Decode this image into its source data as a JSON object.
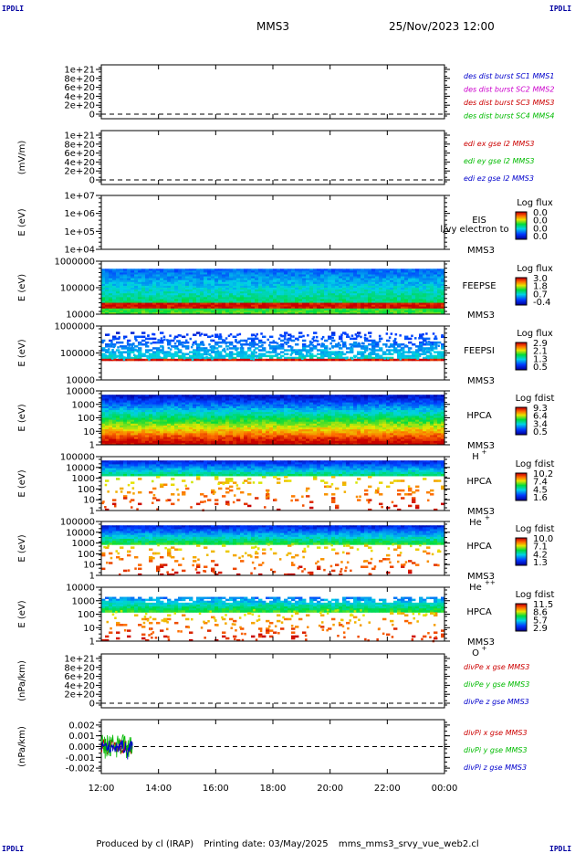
{
  "header": {
    "corner_left_top": "IPDLI",
    "corner_right_top": "IPDLI",
    "corner_left_bottom": "IPDLI",
    "corner_right_bottom": "IPDLI",
    "spacecraft": "MMS3",
    "datetime": "25/Nov/2023 12:00"
  },
  "footer": {
    "produced": "Produced by cl (IRAP)",
    "printed": "Printing date: 03/May/2025",
    "script": "mms_mms3_srvy_vue_web2.cl"
  },
  "colors": {
    "blue": "#0000cc",
    "magenta": "#cc00cc",
    "red": "#cc0000",
    "green": "#00bb00",
    "axis": "#000000"
  },
  "chart_data": [
    {
      "type": "line",
      "ylabel": "",
      "ticks": [
        "1e+21",
        "8e+20",
        "6e+20",
        "4e+20",
        "2e+20",
        "0"
      ],
      "zero_line": "dashed",
      "legend": [
        {
          "label": "des dist burst SC1 MMS1",
          "color": "#0000cc"
        },
        {
          "label": "des dist burst SC2 MMS2",
          "color": "#cc00cc"
        },
        {
          "label": "des dist burst SC3 MMS3",
          "color": "#cc0000"
        },
        {
          "label": "des dist burst SC4 MMS4",
          "color": "#00bb00"
        }
      ]
    },
    {
      "type": "line",
      "ylabel": "(mV/m)",
      "ticks": [
        "1e+21",
        "8e+20",
        "6e+20",
        "4e+20",
        "2e+20",
        "0"
      ],
      "zero_line": "dashed",
      "legend": [
        {
          "label": "edi ex gse l2 MMS3",
          "color": "#cc0000"
        },
        {
          "label": "edi ey gse l2 MMS3",
          "color": "#00bb00"
        },
        {
          "label": "edi ez gse l2 MMS3",
          "color": "#0000cc"
        }
      ]
    },
    {
      "type": "heatmap",
      "ylabel": "E (eV)",
      "ticks": [
        "1e+07",
        "1e+06",
        "1e+05",
        "1e+04"
      ],
      "instrument": "EIS",
      "overlay_text": "l/vy electron to",
      "sc": "MMS3",
      "species": "",
      "cbar_title": "Log flux",
      "cbar_ticks": [
        "0.0",
        "0.0",
        "0.0",
        "0.0"
      ],
      "fill": "none"
    },
    {
      "type": "heatmap",
      "ylabel": "E (eV)",
      "ticks": [
        "1000000",
        "100000",
        "10000"
      ],
      "instrument": "FEEPSE",
      "sc": "MMS3",
      "species": "",
      "cbar_title": "Log flux",
      "cbar_ticks": [
        "3.0",
        "1.8",
        "0.7",
        "-0.4"
      ],
      "fill": "feepse"
    },
    {
      "type": "heatmap",
      "ylabel": "E (eV)",
      "ticks": [
        "1000000",
        "100000",
        "10000"
      ],
      "instrument": "FEEPSI",
      "sc": "MMS3",
      "species": "",
      "cbar_title": "Log flux",
      "cbar_ticks": [
        "2.9",
        "2.1",
        "1.3",
        "0.5"
      ],
      "fill": "feepsi"
    },
    {
      "type": "heatmap",
      "ylabel": "E (eV)",
      "ticks": [
        "10000",
        "1000",
        "100",
        "10",
        "1"
      ],
      "instrument": "HPCA",
      "sc": "MMS3",
      "species": "H",
      "species_sup": "+",
      "cbar_title": "Log fdist",
      "cbar_ticks": [
        "9.3",
        "6.4",
        "3.4",
        "0.5"
      ],
      "fill": "hplus"
    },
    {
      "type": "heatmap",
      "ylabel": "E (eV)",
      "ticks": [
        "100000",
        "10000",
        "1000",
        "100",
        "10",
        "1"
      ],
      "instrument": "HPCA",
      "sc": "MMS3",
      "species": "He",
      "species_sup": "+",
      "cbar_title": "Log fdist",
      "cbar_ticks": [
        "10.2",
        "7.4",
        "4.5",
        "1.6"
      ],
      "fill": "heplus"
    },
    {
      "type": "heatmap",
      "ylabel": "E (eV)",
      "ticks": [
        "100000",
        "10000",
        "1000",
        "100",
        "10",
        "1"
      ],
      "instrument": "HPCA",
      "sc": "MMS3",
      "species": "He",
      "species_sup": "++",
      "cbar_title": "Log fdist",
      "cbar_ticks": [
        "10.0",
        "7.1",
        "4.2",
        "1.3"
      ],
      "fill": "heplusplus"
    },
    {
      "type": "heatmap",
      "ylabel": "E (eV)",
      "ticks": [
        "10000",
        "1000",
        "100",
        "10",
        "1"
      ],
      "instrument": "HPCA",
      "sc": "MMS3",
      "species": "O",
      "species_sup": "+",
      "cbar_title": "Log fdist",
      "cbar_ticks": [
        "11.5",
        "8.6",
        "5.7",
        "2.9"
      ],
      "fill": "oplus"
    },
    {
      "type": "line",
      "ylabel": "(nPa/km)",
      "ticks": [
        "1e+21",
        "8e+20",
        "6e+20",
        "4e+20",
        "2e+20",
        "0"
      ],
      "zero_line": "dashed",
      "legend": [
        {
          "label": "divPe x gse MMS3",
          "color": "#cc0000"
        },
        {
          "label": "divPe y gse MMS3",
          "color": "#00bb00"
        },
        {
          "label": "divPe z gse MMS3",
          "color": "#0000cc"
        }
      ]
    },
    {
      "type": "line",
      "ylabel": "(nPa/km)",
      "ticks": [
        "0.002",
        "0.001",
        "0.000",
        "-0.001",
        "-0.002"
      ],
      "ylim": [
        -0.0025,
        0.0025
      ],
      "zero_line": "dashed",
      "data_extent_hours": [
        12.0,
        13.1
      ],
      "legend": [
        {
          "label": "divPi x gse MMS3",
          "color": "#cc0000"
        },
        {
          "label": "divPi y gse MMS3",
          "color": "#00bb00"
        },
        {
          "label": "divPi z gse MMS3",
          "color": "#0000cc"
        }
      ]
    }
  ],
  "xaxis": {
    "tick_labels": [
      "12:00",
      "14:00",
      "16:00",
      "18:00",
      "20:00",
      "22:00",
      "00:00"
    ],
    "range_hours": [
      12,
      24
    ]
  }
}
